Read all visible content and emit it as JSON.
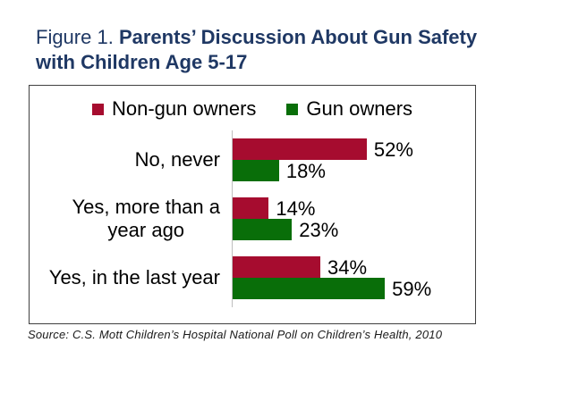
{
  "figure": {
    "label": "Figure 1. ",
    "title_line1": "Parents’ Discussion About Gun Safety",
    "title_line2": "with Children Age 5-17"
  },
  "source": "Source: C.S. Mott Children’s Hospital National Poll on Children’s Health, 2010",
  "colors": {
    "title": "#1F3864",
    "non_gun_owners": "#A60C2F",
    "gun_owners": "#096E09",
    "axis_line": "#BFBFBF",
    "chart_border": "#404040"
  },
  "chart_data": {
    "type": "bar",
    "orientation": "horizontal",
    "title": "Parents’ Discussion About Gun Safety with Children Age 5-17",
    "categories": [
      "No, never",
      "Yes, more than a\nyear ago",
      "Yes, in the last year"
    ],
    "series": [
      {
        "name": "Non-gun owners",
        "color_key": "non_gun_owners",
        "values": [
          52,
          14,
          34
        ]
      },
      {
        "name": "Gun owners",
        "color_key": "gun_owners",
        "values": [
          18,
          23,
          59
        ]
      }
    ],
    "value_suffix": "%",
    "value_labels": true,
    "xlim": [
      0,
      94
    ],
    "xlabel": "",
    "ylabel": "",
    "grid": false,
    "legend_position": "top"
  }
}
